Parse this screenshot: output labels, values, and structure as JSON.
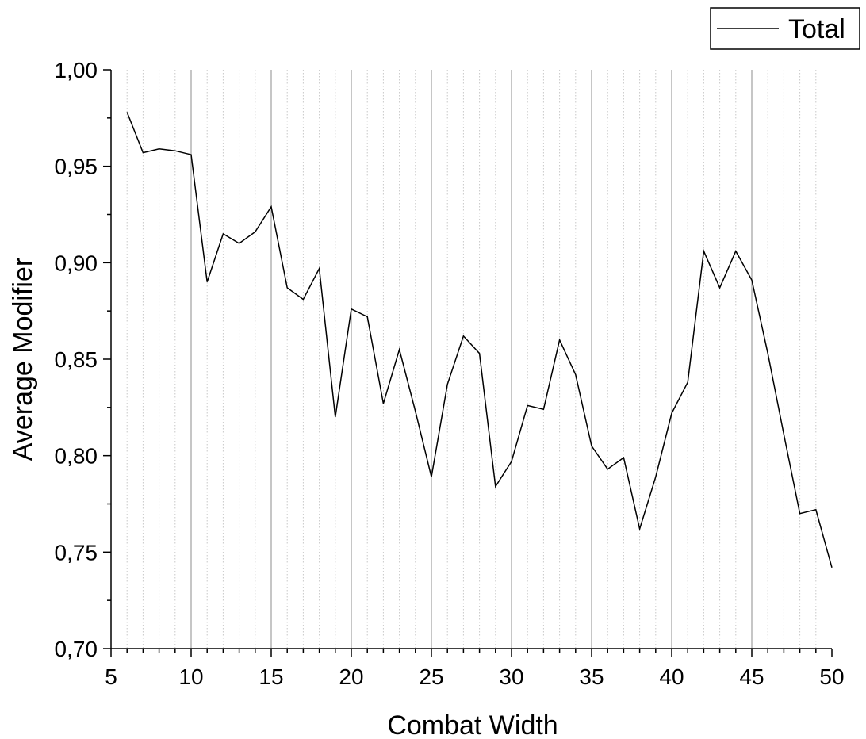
{
  "chart_data": {
    "type": "line",
    "xlabel": "Combat Width",
    "ylabel": "Average Modifier",
    "xlim": [
      5,
      50
    ],
    "ylim": [
      0.7,
      1.0
    ],
    "x_ticks": [
      5,
      10,
      15,
      20,
      25,
      30,
      35,
      40,
      45,
      50
    ],
    "x_tick_labels": [
      "5",
      "10",
      "15",
      "20",
      "25",
      "30",
      "35",
      "40",
      "45",
      "50"
    ],
    "y_ticks": [
      0.7,
      0.75,
      0.8,
      0.85,
      0.9,
      0.95,
      1.0
    ],
    "y_tick_labels": [
      "0,70",
      "0,75",
      "0,80",
      "0,85",
      "0,90",
      "0,95",
      "1,00"
    ],
    "grid": true,
    "legend_position": "top-right",
    "line_color": "#000000",
    "series": [
      {
        "name": "Total",
        "x": [
          6,
          7,
          8,
          9,
          10,
          11,
          12,
          13,
          14,
          15,
          16,
          17,
          18,
          19,
          20,
          21,
          22,
          23,
          24,
          25,
          26,
          27,
          28,
          29,
          30,
          31,
          32,
          33,
          34,
          35,
          36,
          37,
          38,
          39,
          40,
          41,
          42,
          43,
          44,
          45,
          46,
          47,
          48,
          49,
          50
        ],
        "values": [
          0.978,
          0.957,
          0.959,
          0.958,
          0.956,
          0.89,
          0.915,
          0.91,
          0.916,
          0.929,
          0.887,
          0.881,
          0.897,
          0.82,
          0.876,
          0.872,
          0.827,
          0.855,
          0.823,
          0.789,
          0.837,
          0.862,
          0.853,
          0.784,
          0.797,
          0.826,
          0.824,
          0.86,
          0.842,
          0.805,
          0.793,
          0.799,
          0.762,
          0.789,
          0.822,
          0.838,
          0.906,
          0.887,
          0.906,
          0.891,
          0.853,
          0.811,
          0.77,
          0.772,
          0.742
        ]
      }
    ]
  }
}
